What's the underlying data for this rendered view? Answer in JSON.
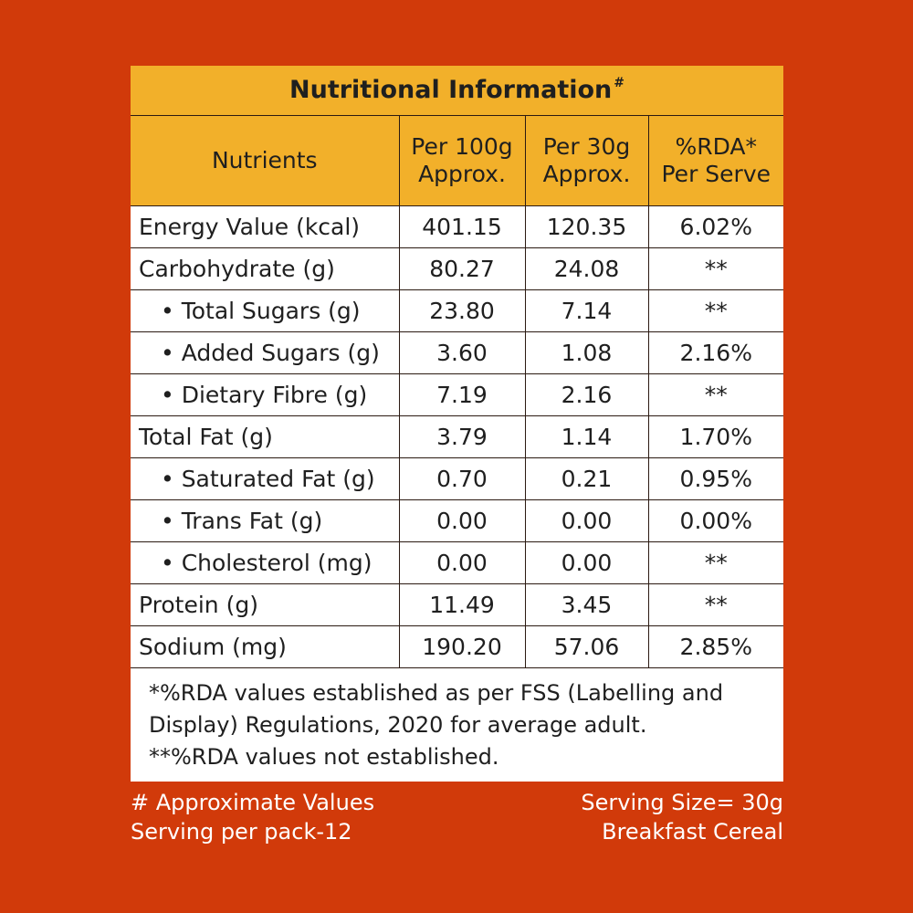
{
  "title": "Nutritional Information",
  "title_mark": "#",
  "headers": {
    "nutrients": "Nutrients",
    "per100": [
      "Per 100g",
      "Approx."
    ],
    "per30": [
      "Per 30g",
      "Approx."
    ],
    "rda": [
      "%RDA*",
      "Per Serve"
    ]
  },
  "rows": [
    {
      "name": "Energy Value (kcal)",
      "per100": "401.15",
      "per30": "120.35",
      "rda": "6.02%"
    },
    {
      "name": "Carbohydrate (g)",
      "per100": "80.27",
      "per30": "24.08",
      "rda": "**"
    },
    {
      "name": "• Total Sugars (g)",
      "per100": "23.80",
      "per30": "7.14",
      "rda": "**"
    },
    {
      "name": "• Added Sugars (g)",
      "per100": "3.60",
      "per30": "1.08",
      "rda": "2.16%"
    },
    {
      "name": "• Dietary Fibre (g)",
      "per100": "7.19",
      "per30": "2.16",
      "rda": "**"
    },
    {
      "name": "Total Fat (g)",
      "per100": "3.79",
      "per30": "1.14",
      "rda": "1.70%"
    },
    {
      "name": "• Saturated Fat (g)",
      "per100": "0.70",
      "per30": "0.21",
      "rda": "0.95%"
    },
    {
      "name": "• Trans Fat (g)",
      "per100": "0.00",
      "per30": "0.00",
      "rda": "0.00%"
    },
    {
      "name": "• Cholesterol (mg)",
      "per100": "0.00",
      "per30": "0.00",
      "rda": "**"
    },
    {
      "name": "Protein (g)",
      "per100": "11.49",
      "per30": "3.45",
      "rda": "**"
    },
    {
      "name": "Sodium (mg)",
      "per100": "190.20",
      "per30": "57.06",
      "rda": "2.85%"
    }
  ],
  "notes": [
    "*%RDA values established as per FSS (Labelling and",
    "Display) Regulations, 2020 for average adult.",
    "**%RDA values not established."
  ],
  "footer": {
    "approx": "# Approximate Values",
    "servings": "Serving per pack-12",
    "serving_size": "Serving Size= 30g",
    "product": "Breakfast Cereal"
  },
  "colors": {
    "background": "#d13a0a",
    "header": "#f2b02a",
    "panel": "#ffffff"
  }
}
